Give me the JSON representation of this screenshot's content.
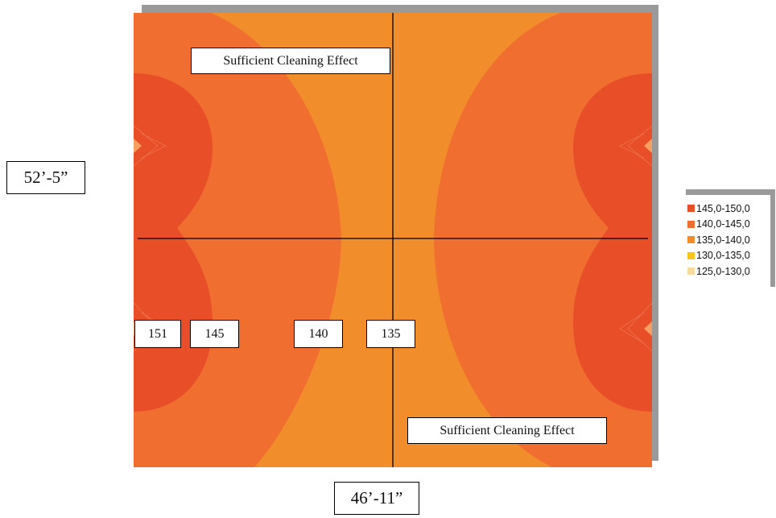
{
  "plot": {
    "top_label": "Sufficient Cleaning Effect",
    "bottom_label": "Sufficient Cleaning Effect",
    "value_labels": [
      "151",
      "145",
      "140",
      "135"
    ]
  },
  "dimensions": {
    "height_label": "52’-5”",
    "width_label": "46’-11”"
  },
  "legend": {
    "items": [
      {
        "label": "145,0-150,0",
        "color": "#e84f28"
      },
      {
        "label": "140,0-145,0",
        "color": "#f06e2f"
      },
      {
        "label": "135,0-140,0",
        "color": "#f28d2c"
      },
      {
        "label": "130,0-135,0",
        "color": "#f8c61a"
      },
      {
        "label": "125,0-130,0",
        "color": "#f6dc9f"
      }
    ]
  },
  "colors": {
    "band_145_150": "#e84f28",
    "band_140_145": "#f06e2f",
    "band_135_140": "#f28d2c",
    "axis_line": "#000000",
    "shadow": "#9a9a9a"
  }
}
